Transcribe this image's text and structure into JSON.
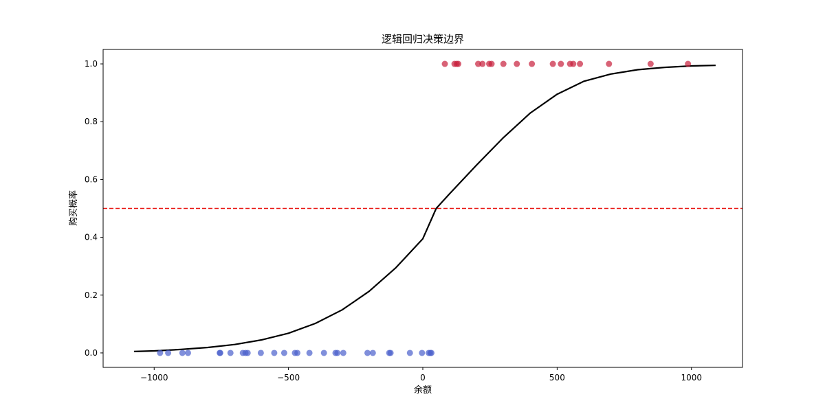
{
  "chart_data": {
    "type": "scatter",
    "title": "逻辑回归决策边界",
    "xlabel": "余额",
    "ylabel": "购买概率",
    "xlim": [
      -1190,
      1190
    ],
    "ylim": [
      -0.05,
      1.05
    ],
    "xticks": [
      -1000,
      -500,
      0,
      500,
      1000
    ],
    "xtick_labels": [
      "−1000",
      "−500",
      "0",
      "500",
      "1000"
    ],
    "yticks": [
      0.0,
      0.2,
      0.4,
      0.6,
      0.8,
      1.0
    ],
    "ytick_labels": [
      "0.0",
      "0.2",
      "0.4",
      "0.6",
      "0.8",
      "1.0"
    ],
    "grid": false,
    "threshold": {
      "y": 0.5,
      "color": "#e8120f",
      "style": "dashed"
    },
    "curve": {
      "type": "logistic",
      "color": "#000000",
      "x": [
        -1075,
        -1000,
        -900,
        -800,
        -700,
        -600,
        -500,
        -400,
        -300,
        -200,
        -100,
        0,
        50,
        100,
        200,
        300,
        400,
        500,
        600,
        700,
        800,
        900,
        1000,
        1090
      ],
      "y": [
        0.005,
        0.007,
        0.012,
        0.019,
        0.029,
        0.045,
        0.068,
        0.102,
        0.149,
        0.213,
        0.295,
        0.395,
        0.5,
        0.551,
        0.65,
        0.745,
        0.83,
        0.895,
        0.94,
        0.965,
        0.98,
        0.988,
        0.993,
        0.995
      ]
    },
    "series": [
      {
        "class": 0,
        "color": "#4a5fcc",
        "x": [
          -978,
          -948,
          -895,
          -874,
          -756,
          -754,
          -716,
          -670,
          -660,
          -652,
          -603,
          -553,
          -516,
          -476,
          -467,
          -422,
          -368,
          -325,
          -318,
          -296,
          -206,
          -186,
          -125,
          -120,
          -48,
          -3,
          22,
          28,
          32
        ],
        "y": [
          0,
          0,
          0,
          0,
          0,
          0,
          0,
          0,
          0,
          0,
          0,
          0,
          0,
          0,
          0,
          0,
          0,
          0,
          0,
          0,
          0,
          0,
          0,
          0,
          0,
          0,
          0,
          0,
          0
        ]
      },
      {
        "class": 1,
        "color": "#c8203c",
        "x": [
          82,
          118,
          126,
          132,
          206,
          222,
          247,
          256,
          300,
          350,
          406,
          484,
          514,
          548,
          560,
          585,
          693,
          848,
          987
        ],
        "y": [
          1,
          1,
          1,
          1,
          1,
          1,
          1,
          1,
          1,
          1,
          1,
          1,
          1,
          1,
          1,
          1,
          1,
          1,
          1
        ]
      }
    ]
  }
}
